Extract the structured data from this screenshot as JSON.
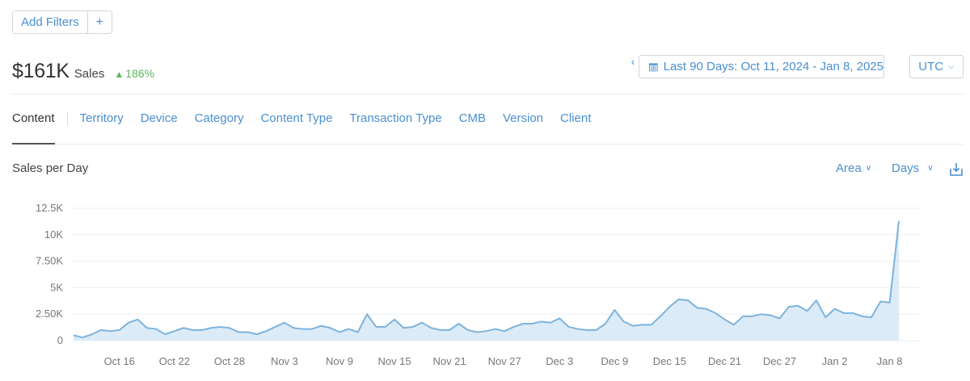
{
  "filters": {
    "add_label": "Add Filters",
    "plus_label": "+"
  },
  "summary": {
    "total": "$161K",
    "label": "Sales",
    "change": "186%",
    "change_color": "#5cb85c"
  },
  "date_range": {
    "prev_icon": "chevron-left-icon",
    "calendar_icon": "calendar-icon",
    "label": "Last 90 Days: Oct 11, 2024 - Jan 8, 2025"
  },
  "timezone": {
    "label": "UTC"
  },
  "tabs": [
    {
      "label": "Content",
      "active": true
    },
    {
      "label": "Territory"
    },
    {
      "label": "Device"
    },
    {
      "label": "Category"
    },
    {
      "label": "Content Type"
    },
    {
      "label": "Transaction Type"
    },
    {
      "label": "CMB"
    },
    {
      "label": "Version"
    },
    {
      "label": "Client"
    }
  ],
  "chart_header": {
    "title": "Sales per Day",
    "type_label": "Area",
    "interval_label": "Days",
    "download_icon": "download-icon"
  },
  "colors": {
    "accent": "#4a8fd0",
    "series_line": "#7db3dc",
    "series_fill": "#dcebf8"
  },
  "chart_data": {
    "type": "area",
    "title": "Sales per Day",
    "ylim": [
      0,
      12500
    ],
    "yticks": [
      0,
      2500,
      5000,
      7500,
      10000,
      12500
    ],
    "ytick_labels": [
      "0",
      "2.50K",
      "5K",
      "7.50K",
      "10K",
      "12.5K"
    ],
    "xtick_labels": [
      "Oct 16",
      "Oct 22",
      "Oct 28",
      "Nov 3",
      "Nov 9",
      "Nov 15",
      "Nov 21",
      "Nov 27",
      "Dec 3",
      "Dec 9",
      "Dec 15",
      "Dec 21",
      "Dec 27",
      "Jan 2",
      "Jan 8"
    ],
    "grid": true,
    "x_start": "Oct 11, 2024",
    "x_end": "Jan 8, 2025",
    "series": [
      {
        "values": [
          500,
          300,
          600,
          1000,
          900,
          1000,
          1700,
          2000,
          1200,
          1100,
          600,
          900,
          1200,
          1000,
          1000,
          1200,
          1300,
          1200,
          800,
          800,
          600,
          900,
          1300,
          1700,
          1200,
          1100,
          1100,
          1400,
          1200,
          800,
          1100,
          800,
          2500,
          1300,
          1300,
          2000,
          1200,
          1300,
          1700,
          1200,
          1000,
          1000,
          1600,
          1000,
          800,
          900,
          1100,
          900,
          1300,
          1600,
          1600,
          1800,
          1700,
          2100,
          1300,
          1100,
          1000,
          1000,
          1600,
          2900,
          1800,
          1400,
          1500,
          1500,
          2300,
          3200,
          3900,
          3800,
          3100,
          3000,
          2600,
          2000,
          1500,
          2300,
          2300,
          2500,
          2400,
          2100,
          3200,
          3300,
          2800,
          3800,
          2200,
          3000,
          2600,
          2600,
          2300,
          2200,
          3700,
          3600,
          11300
        ]
      }
    ]
  }
}
